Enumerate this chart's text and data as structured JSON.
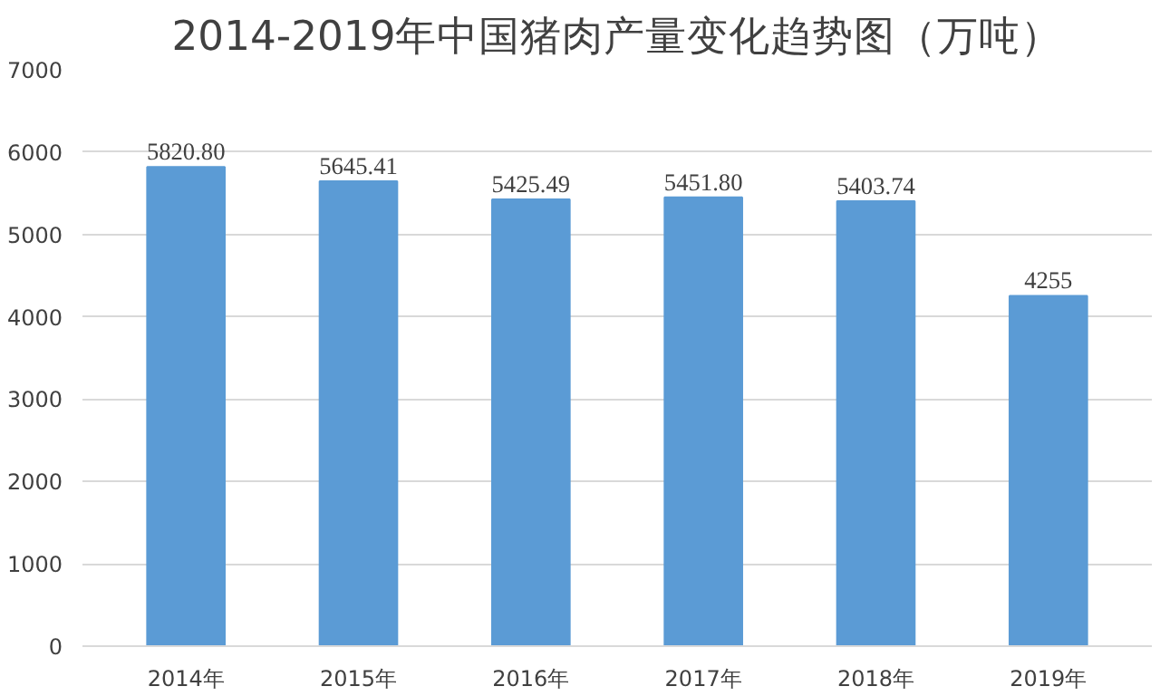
{
  "chart_data": {
    "type": "bar",
    "title": "2014-2019年中国猪肉产量变化趋势图（万吨）",
    "categories": [
      "2014年",
      "2015年",
      "2016年",
      "2017年",
      "2018年",
      "2019年"
    ],
    "values": [
      5820.8,
      5645.41,
      5425.49,
      5451.8,
      5403.74,
      4255
    ],
    "value_labels": [
      "5820.80",
      "5645.41",
      "5425.49",
      "5451.80",
      "5403.74",
      "4255"
    ],
    "color": "#5b9bd5",
    "ylim": [
      0,
      7000
    ],
    "yticks": [
      0,
      1000,
      2000,
      3000,
      4000,
      5000,
      6000,
      7000
    ],
    "grid": "y"
  }
}
